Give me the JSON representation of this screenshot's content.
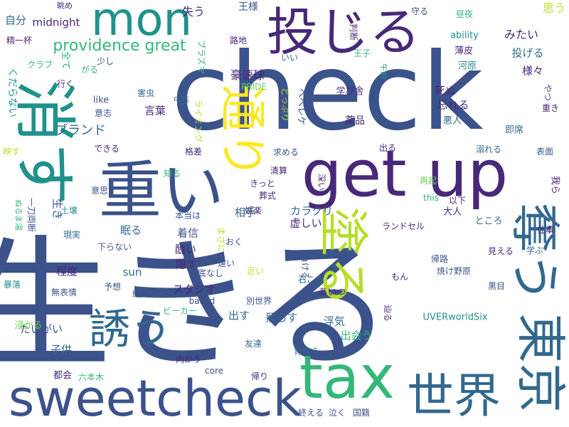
{
  "palette": {
    "navy": "#3b528b",
    "purple": "#482878",
    "teal": "#21918c",
    "blue": "#31688e",
    "green": "#35b779",
    "lime": "#b5de2b",
    "lightgreen": "#6ece58",
    "darkblue": "#2c4f8a"
  },
  "words": [
    {
      "text": "生きる",
      "color": "#3b528b"
    },
    {
      "text": "check",
      "color": "#3b528b"
    },
    {
      "text": "sweetcheck",
      "color": "#3b528b"
    },
    {
      "text": "get up",
      "color": "#482878"
    },
    {
      "text": "重い",
      "color": "#3b528b"
    },
    {
      "text": "消す",
      "color": "#21918c"
    },
    {
      "text": "mon",
      "color": "#21918c"
    },
    {
      "text": "投じる",
      "color": "#482878"
    },
    {
      "text": "tax",
      "color": "#35b779"
    },
    {
      "text": "世界",
      "color": "#31688e"
    },
    {
      "text": "東京",
      "color": "#31688e"
    },
    {
      "text": "奪う",
      "color": "#31688e"
    },
    {
      "text": "塗る",
      "color": "#b5de2b"
    },
    {
      "text": "通り",
      "color": "#fde725"
    },
    {
      "text": "誘う",
      "color": "#31688e"
    },
    {
      "text": "providence great",
      "color": "#35b779"
    },
    {
      "text": "自分",
      "color": "#31688e"
    },
    {
      "text": "精一杯",
      "color": "#482878"
    },
    {
      "text": "くだらない",
      "color": "#21918c"
    },
    {
      "text": "クラブ",
      "color": "#35b779"
    },
    {
      "text": "ブランド",
      "color": "#31688e"
    },
    {
      "text": "midnight",
      "color": "#482878"
    },
    {
      "text": "眺め",
      "color": "#482878"
    },
    {
      "text": "失う",
      "color": "#482878"
    },
    {
      "text": "王様",
      "color": "#3b528b"
    },
    {
      "text": "思う",
      "color": "#b5de2b"
    },
    {
      "text": "昼夜",
      "color": "#35b779"
    },
    {
      "text": "みたい",
      "color": "#482878"
    },
    {
      "text": "守る",
      "color": "#3b528b"
    },
    {
      "text": "ability",
      "color": "#21918c"
    },
    {
      "text": "投げる",
      "color": "#31688e"
    },
    {
      "text": "様々",
      "color": "#482878"
    },
    {
      "text": "薄皮",
      "color": "#482878"
    },
    {
      "text": "河原",
      "color": "#21918c"
    },
    {
      "text": "豪速球",
      "color": "#482878"
    },
    {
      "text": "学び舎",
      "color": "#482878"
    },
    {
      "text": "死ぬ",
      "color": "#482878"
    },
    {
      "text": "忘れる",
      "color": "#482878"
    },
    {
      "text": "言葉",
      "color": "#482878"
    },
    {
      "text": "害虫",
      "color": "#31688e"
    },
    {
      "text": "中核",
      "color": "#31688e"
    },
    {
      "text": "薬品",
      "color": "#482878"
    },
    {
      "text": "悪人",
      "color": "#31688e"
    },
    {
      "text": "重き",
      "color": "#482878"
    },
    {
      "text": "即席",
      "color": "#31688e"
    },
    {
      "text": "PRIDE",
      "color": "#6ece58"
    },
    {
      "text": "出る",
      "color": "#482878"
    },
    {
      "text": "溺れる",
      "color": "#31688e"
    },
    {
      "text": "表面",
      "color": "#3b528b"
    },
    {
      "text": "できる",
      "color": "#482878"
    },
    {
      "text": "求める",
      "color": "#3b528b"
    },
    {
      "text": "清算",
      "color": "#482878"
    },
    {
      "text": "再起",
      "color": "#6ece58"
    },
    {
      "text": "葬式",
      "color": "#482878"
    },
    {
      "text": "this",
      "color": "#35b779"
    },
    {
      "text": "きっと",
      "color": "#482878"
    },
    {
      "text": "娯楽",
      "color": "#482878"
    },
    {
      "text": "相手",
      "color": "#31688e"
    },
    {
      "text": "カラクリ",
      "color": "#31688e"
    },
    {
      "text": "大人",
      "color": "#482878"
    },
    {
      "text": "以下",
      "color": "#482878"
    },
    {
      "text": "ランドセル",
      "color": "#482878"
    },
    {
      "text": "ところ",
      "color": "#31688e"
    },
    {
      "text": "仕事",
      "color": "#482878"
    },
    {
      "text": "虚しい",
      "color": "#482878"
    },
    {
      "text": "眠る",
      "color": "#31688e"
    },
    {
      "text": "着信",
      "color": "#3b528b"
    },
    {
      "text": "醜い",
      "color": "#482878"
    },
    {
      "text": "隠す",
      "color": "#482878"
    },
    {
      "text": "本当は",
      "color": "#3b528b"
    },
    {
      "text": "おく",
      "color": "#3b528b"
    },
    {
      "text": "底なし",
      "color": "#3b528b"
    },
    {
      "text": "近い",
      "color": "#b5de2b"
    },
    {
      "text": "石ころ",
      "color": "#31688e"
    },
    {
      "text": "帰路",
      "color": "#3b528b"
    },
    {
      "text": "焼け野原",
      "color": "#3b528b"
    },
    {
      "text": "見える",
      "color": "#482878"
    },
    {
      "text": "学ぶ",
      "color": "#31688e"
    },
    {
      "text": "黒目",
      "color": "#3b528b"
    },
    {
      "text": "もん",
      "color": "#482878"
    },
    {
      "text": "スタジオ",
      "color": "#482878"
    },
    {
      "text": "baked",
      "color": "#3b528b"
    },
    {
      "text": "別世界",
      "color": "#3b528b"
    },
    {
      "text": "あいつ",
      "color": "#482878"
    },
    {
      "text": "程度",
      "color": "#482878"
    },
    {
      "text": "sun",
      "color": "#31688e"
    },
    {
      "text": "ビーカー",
      "color": "#35b779"
    },
    {
      "text": "縮図",
      "color": "#3b528b"
    },
    {
      "text": "予想",
      "color": "#3b528b"
    },
    {
      "text": "無表情",
      "color": "#3b528b"
    },
    {
      "text": "出す",
      "color": "#31688e"
    },
    {
      "text": "照らす",
      "color": "#31688e"
    },
    {
      "text": "浮気",
      "color": "#31688e"
    },
    {
      "text": "たいがい",
      "color": "#3b528b"
    },
    {
      "text": "子供",
      "color": "#31688e"
    },
    {
      "text": "向かう",
      "color": "#482878"
    },
    {
      "text": "友達",
      "color": "#31688e"
    },
    {
      "text": "背負う",
      "color": "#31688e"
    },
    {
      "text": "出会う",
      "color": "#35b779"
    },
    {
      "text": "UVERworldSix",
      "color": "#21918c"
    },
    {
      "text": "都会",
      "color": "#482878"
    },
    {
      "text": "六本木",
      "color": "#35b779"
    },
    {
      "text": "core",
      "color": "#3b528b"
    },
    {
      "text": "帰り",
      "color": "#482878"
    },
    {
      "text": "終える",
      "color": "#3b528b"
    },
    {
      "text": "泣く",
      "color": "#3b528b"
    },
    {
      "text": "国籍",
      "color": "#3b528b"
    },
    {
      "text": "浸かる",
      "color": "#6ece58"
    },
    {
      "text": "暴落",
      "color": "#21918c"
    },
    {
      "text": "現実",
      "color": "#31688e"
    },
    {
      "text": "土壌",
      "color": "#21918c"
    },
    {
      "text": "下らない",
      "color": "#3b528b"
    },
    {
      "text": "意思",
      "color": "#3b528b"
    },
    {
      "text": "映す",
      "color": "#b5de2b"
    },
    {
      "text": "意志",
      "color": "#3b528b"
    },
    {
      "text": "like",
      "color": "#3b528b"
    },
    {
      "text": "少し",
      "color": "#3b528b"
    },
    {
      "text": "がる",
      "color": "#35b779"
    },
    {
      "text": "行く",
      "color": "#482878"
    },
    {
      "text": "全て",
      "color": "#35b779"
    },
    {
      "text": "路地",
      "color": "#482878"
    },
    {
      "text": "いい",
      "color": "#31688e"
    },
    {
      "text": "王子",
      "color": "#35b779"
    },
    {
      "text": "知る",
      "color": "#35b779"
    },
    {
      "text": "格差",
      "color": "#482878"
    },
    {
      "text": "遠い",
      "color": "#3b528b"
    },
    {
      "text": "ヘベレケ",
      "color": "#3b528b"
    },
    {
      "text": "ライミング",
      "color": "#b5de2b"
    },
    {
      "text": "プラズマ",
      "color": "#35b779"
    },
    {
      "text": "判断",
      "color": "#482878"
    },
    {
      "text": "午前",
      "color": "#21918c"
    },
    {
      "text": "どっぷり",
      "color": "#b5de2b"
    },
    {
      "text": "一刀両断",
      "color": "#3b528b"
    },
    {
      "text": "ぬるま湯",
      "color": "#35b779"
    },
    {
      "text": "生き",
      "color": "#3b528b"
    },
    {
      "text": "まさに",
      "color": "#b5de2b"
    },
    {
      "text": "深い",
      "color": "#482878"
    },
    {
      "text": "我ら",
      "color": "#482878"
    },
    {
      "text": "負ける",
      "color": "#3b528b"
    },
    {
      "text": "やつ",
      "color": "#3b528b"
    },
    {
      "text": "辿る",
      "color": "#482878"
    }
  ]
}
